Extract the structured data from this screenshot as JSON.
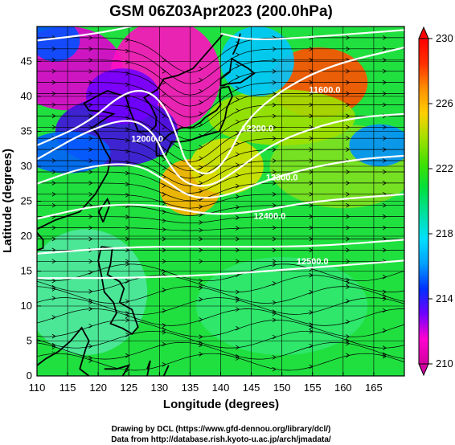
{
  "title": "GSM 06Z03Apr2023 (200.0hPa)",
  "xlabel": "Longitude (degrees)",
  "ylabel": "Latitude (degrees)",
  "credits": [
    "Drawing by DCL (https://www.gfd-dennou.org/library/dcl/)",
    "Data from http://database.rish.kyoto-u.ac.jp/arch/jmadata/"
  ],
  "chart_data": {
    "type": "heatmap",
    "title": "GSM 06Z03Apr2023 (200.0hPa)",
    "xlabel": "Longitude (degrees)",
    "ylabel": "Latitude (degrees)",
    "xlim": [
      110,
      170
    ],
    "ylim": [
      0,
      50
    ],
    "xticks": [
      "110",
      "115",
      "120",
      "125",
      "130",
      "135",
      "140",
      "145",
      "150",
      "155",
      "160",
      "165"
    ],
    "yticks": [
      "0",
      "5",
      "10",
      "15",
      "20",
      "25",
      "30",
      "35",
      "40",
      "45"
    ],
    "colorbar": {
      "range": [
        210,
        230
      ],
      "ticks": [
        "210",
        "214",
        "218",
        "222",
        "226",
        "230"
      ],
      "colors": [
        "#d200a0",
        "#ff00d0",
        "#7000ff",
        "#0030ff",
        "#00a0ff",
        "#00e0ff",
        "#00e0a0",
        "#00e040",
        "#40e000",
        "#a0e000",
        "#ffd000",
        "#ff9000",
        "#ff3000",
        "#ff0000"
      ]
    },
    "contours": [
      {
        "label": "12000.0",
        "lon": 128,
        "lat": 33.5
      },
      {
        "label": "11600.0",
        "lon": 157,
        "lat": 40.5
      },
      {
        "label": "12200.0",
        "lon": 146,
        "lat": 35
      },
      {
        "label": "12300.0",
        "lon": 150,
        "lat": 28
      },
      {
        "label": "12400.0",
        "lon": 148,
        "lat": 22.5
      },
      {
        "label": "12500.0",
        "lon": 155,
        "lat": 16
      }
    ]
  }
}
